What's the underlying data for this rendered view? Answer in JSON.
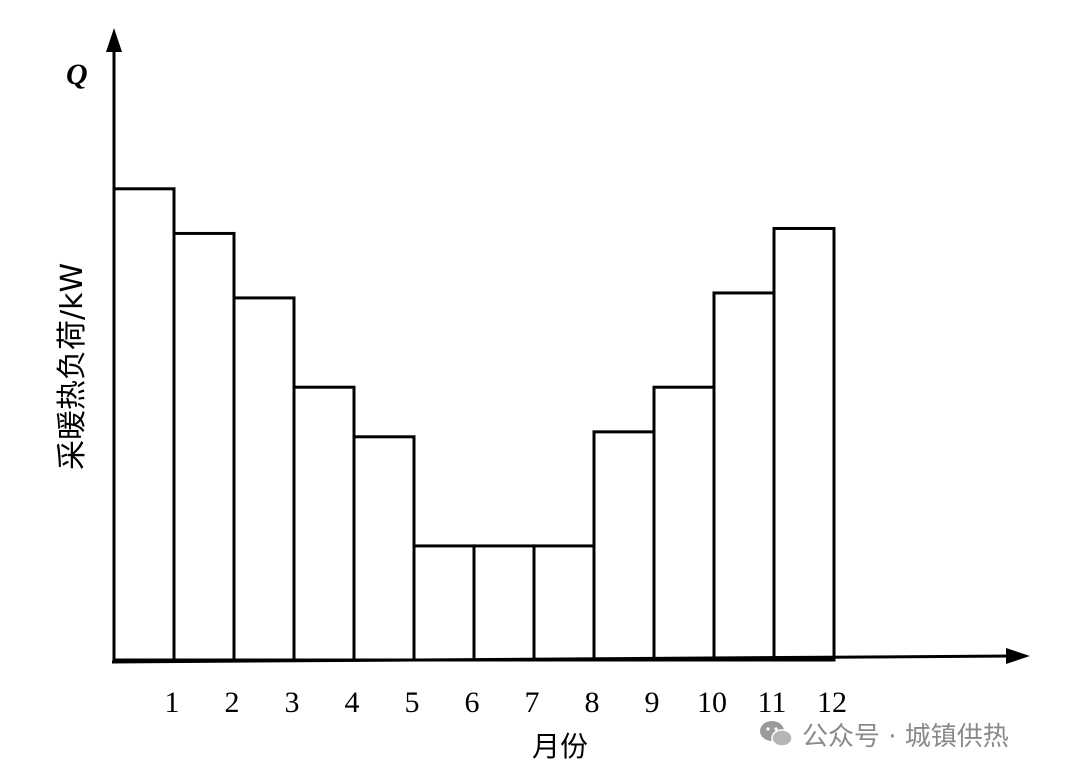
{
  "chart_data": {
    "type": "bar",
    "title": "",
    "y_axis_symbol": "Q",
    "ylabel": "采暖热负荷/kW",
    "xlabel": "月份",
    "categories": [
      "1",
      "2",
      "3",
      "4",
      "5",
      "6",
      "7",
      "8",
      "9",
      "10",
      "11",
      "12"
    ],
    "values": [
      9.5,
      8.6,
      7.3,
      5.5,
      4.5,
      2.3,
      2.3,
      2.3,
      4.6,
      5.5,
      7.4,
      8.7
    ],
    "ylim": [
      0,
      12.5
    ],
    "grid": false,
    "legend": "none"
  },
  "watermark": {
    "text": "公众号 · 城镇供热",
    "icon": "wechat-icon"
  }
}
